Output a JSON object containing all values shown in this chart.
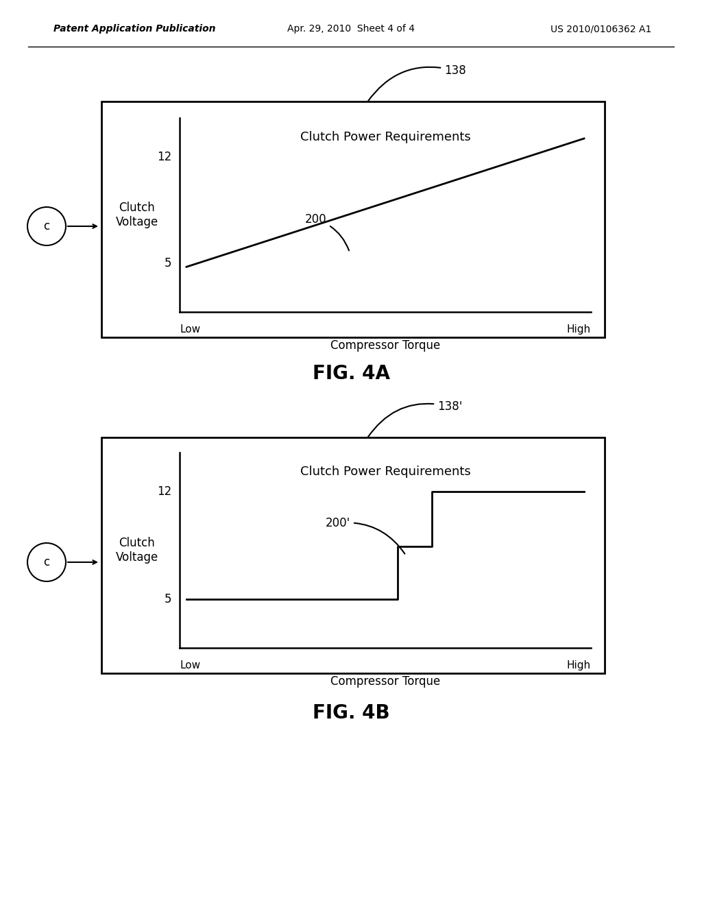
{
  "bg_color": "#ffffff",
  "line_color": "#000000",
  "header_left": "Patent Application Publication",
  "header_mid": "Apr. 29, 2010  Sheet 4 of 4",
  "header_right": "US 2010/0106362 A1",
  "fig4a_title": "FIG. 4A",
  "fig4b_title": "FIG. 4B",
  "chart_title": "Clutch Power Requirements",
  "ylabel": "Clutch\nVoltage",
  "xlabel": "Compressor Torque",
  "x_low_label": "Low",
  "x_high_label": "High",
  "ytick_5": "5",
  "ytick_12": "12",
  "label_138": "138",
  "label_138p": "138'",
  "label_200": "200",
  "label_200p": "200'",
  "circle_label": "c"
}
